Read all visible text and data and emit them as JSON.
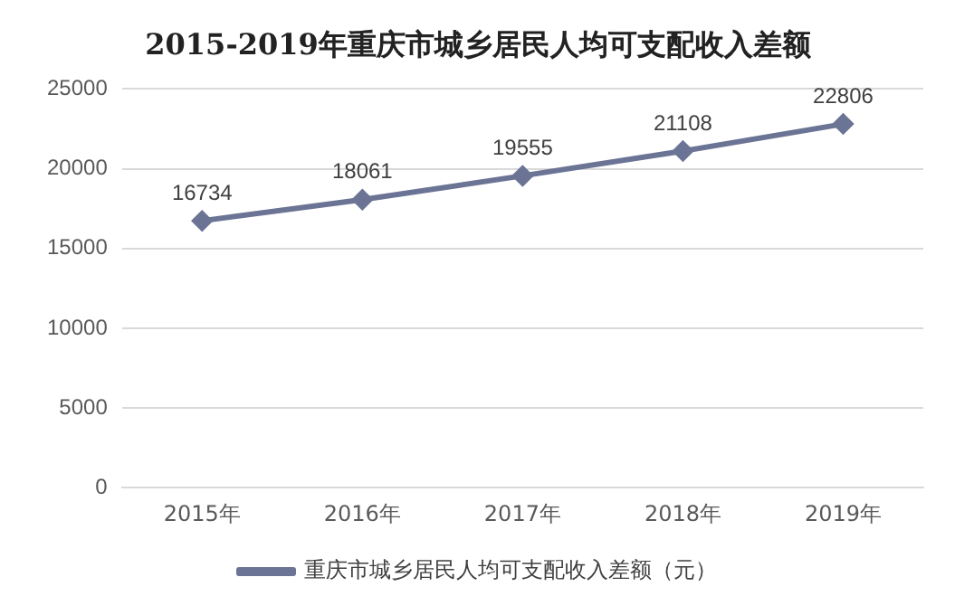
{
  "chart_data": {
    "type": "line",
    "title": "2015-2019年重庆市城乡居民人均可支配收入差额",
    "categories": [
      "2015年",
      "2016年",
      "2017年",
      "2018年",
      "2019年"
    ],
    "series": [
      {
        "name": "重庆市城乡居民人均可支配收入差额（元）",
        "color": "#6b7494",
        "values": [
          16734,
          18061,
          19555,
          21108,
          22806
        ]
      }
    ],
    "ylim": [
      0,
      25000
    ],
    "yticks": [
      0,
      5000,
      10000,
      15000,
      20000,
      25000
    ],
    "grid": "y",
    "legend": "bottom",
    "marker": "diamond",
    "data_labels": true
  }
}
